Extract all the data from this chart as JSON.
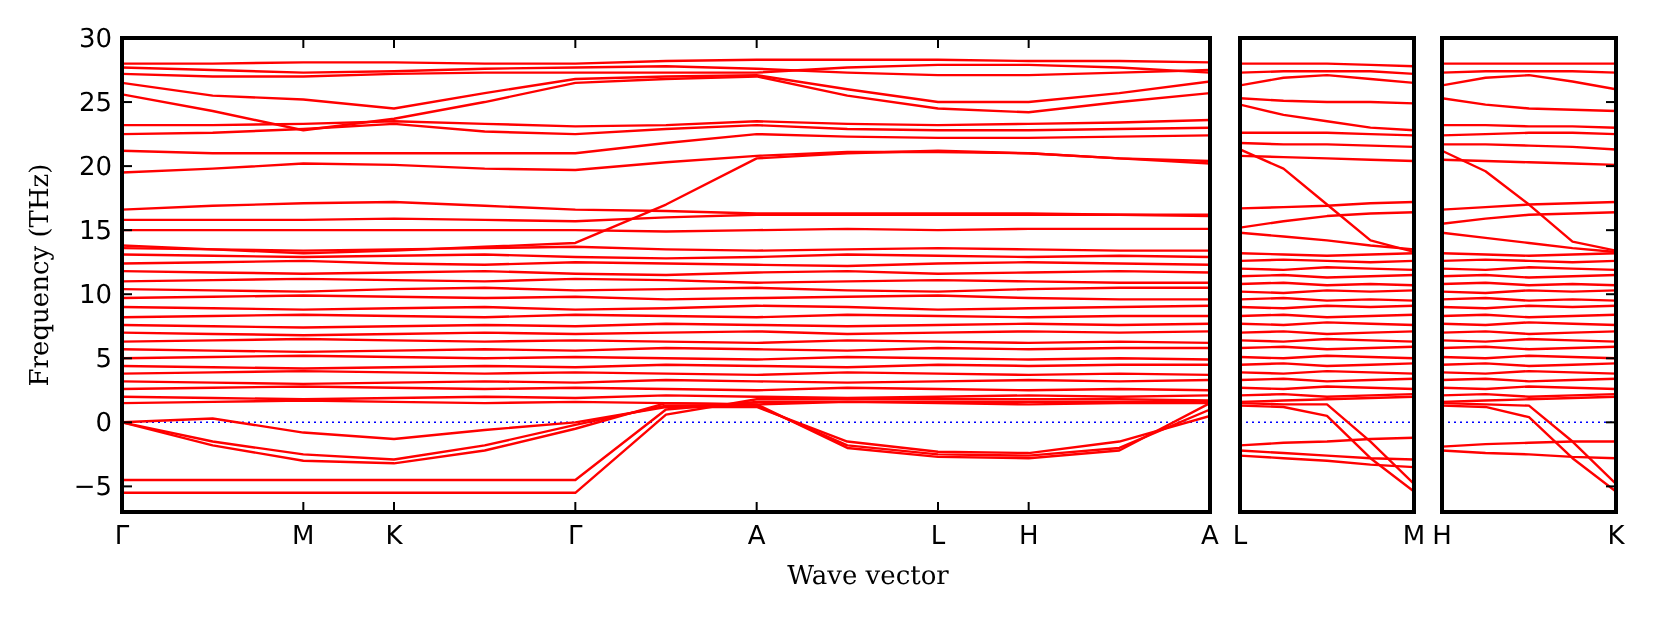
{
  "chart_data": [
    {
      "type": "line",
      "ylabel": "Frequency (THz)",
      "xlabel": "Wave vector",
      "categories": [
        "Γ",
        null,
        "M",
        "K",
        null,
        "Γ",
        null,
        "A",
        null,
        "L",
        "H",
        null,
        "A"
      ],
      "ylim": [
        -7,
        30
      ],
      "yticks": [
        -5,
        0,
        5,
        10,
        15,
        20,
        25,
        30
      ],
      "ref_lines": [
        {
          "axis": "y",
          "value": 0,
          "color": "#0000ff",
          "line_style": "dotted"
        }
      ],
      "series": [
        {
          "color": "#ff0000",
          "values": [
            28.0,
            28.0,
            28.1,
            28.1,
            28.0,
            28.0,
            28.2,
            28.3,
            28.3,
            28.3,
            28.2,
            28.2,
            28.1
          ]
        },
        {
          "color": "#ff0000",
          "values": [
            27.7,
            27.5,
            27.3,
            27.4,
            27.6,
            27.7,
            27.8,
            27.6,
            27.3,
            27.1,
            27.1,
            27.3,
            27.5
          ]
        },
        {
          "color": "#ff0000",
          "values": [
            27.2,
            27.0,
            27.0,
            27.2,
            27.3,
            27.3,
            27.3,
            27.3,
            27.7,
            27.9,
            27.9,
            27.7,
            27.3
          ]
        },
        {
          "color": "#ff0000",
          "values": [
            26.5,
            25.5,
            25.2,
            24.5,
            25.7,
            26.8,
            27.0,
            27.1,
            26.0,
            25.0,
            25.0,
            25.7,
            26.6
          ]
        },
        {
          "color": "#ff0000",
          "values": [
            25.6,
            24.3,
            22.8,
            23.7,
            25.0,
            26.5,
            26.8,
            27.0,
            25.5,
            24.5,
            24.2,
            25.0,
            25.7
          ]
        },
        {
          "color": "#ff0000",
          "values": [
            23.2,
            23.2,
            23.3,
            23.5,
            23.3,
            23.1,
            23.2,
            23.5,
            23.3,
            23.2,
            23.3,
            23.4,
            23.6
          ]
        },
        {
          "color": "#ff0000",
          "values": [
            22.5,
            22.6,
            22.9,
            23.3,
            22.7,
            22.5,
            22.9,
            23.2,
            22.9,
            22.8,
            22.8,
            22.9,
            23.0
          ]
        },
        {
          "color": "#ff0000",
          "values": [
            21.2,
            21.0,
            21.0,
            21.0,
            21.0,
            21.0,
            21.8,
            22.5,
            22.3,
            22.2,
            22.2,
            22.3,
            22.4
          ]
        },
        {
          "color": "#ff0000",
          "values": [
            19.5,
            19.8,
            20.2,
            20.1,
            19.8,
            19.7,
            20.3,
            20.8,
            21.1,
            21.1,
            21.0,
            20.6,
            20.2
          ]
        },
        {
          "color": "#ff0000",
          "values": [
            16.6,
            16.9,
            17.1,
            17.2,
            16.9,
            16.6,
            16.5,
            16.3,
            16.3,
            16.3,
            16.3,
            16.2,
            16.2
          ]
        },
        {
          "color": "#ff0000",
          "values": [
            15.8,
            15.8,
            15.8,
            15.9,
            15.8,
            15.7,
            16.0,
            16.2,
            16.2,
            16.2,
            16.2,
            16.2,
            16.1
          ]
        },
        {
          "color": "#ff0000",
          "values": [
            15.0,
            15.0,
            15.0,
            15.0,
            15.0,
            15.0,
            14.9,
            15.0,
            15.1,
            15.0,
            15.1,
            15.1,
            15.1
          ]
        },
        {
          "color": "#ff0000",
          "values": [
            13.8,
            13.5,
            13.2,
            13.4,
            13.7,
            14.0,
            17.0,
            20.6,
            21.0,
            21.2,
            21.0,
            20.6,
            20.4
          ]
        },
        {
          "color": "#ff0000",
          "values": [
            13.6,
            13.5,
            13.4,
            13.5,
            13.6,
            13.7,
            13.5,
            13.4,
            13.5,
            13.6,
            13.5,
            13.4,
            13.4
          ]
        },
        {
          "color": "#ff0000",
          "values": [
            13.1,
            13.0,
            12.9,
            13.0,
            13.1,
            12.9,
            12.8,
            12.9,
            13.1,
            13.0,
            12.9,
            13.0,
            12.9
          ]
        },
        {
          "color": "#ff0000",
          "values": [
            12.4,
            12.5,
            12.6,
            12.4,
            12.3,
            12.5,
            12.4,
            12.3,
            12.2,
            12.4,
            12.5,
            12.4,
            12.3
          ]
        },
        {
          "color": "#ff0000",
          "values": [
            11.8,
            11.7,
            11.6,
            11.7,
            11.8,
            11.6,
            11.5,
            11.7,
            11.8,
            11.6,
            11.7,
            11.8,
            11.7
          ]
        },
        {
          "color": "#ff0000",
          "values": [
            11.0,
            11.1,
            11.2,
            11.1,
            11.0,
            11.2,
            11.1,
            10.9,
            11.0,
            11.1,
            11.0,
            10.9,
            10.9
          ]
        },
        {
          "color": "#ff0000",
          "values": [
            10.4,
            10.3,
            10.2,
            10.4,
            10.5,
            10.3,
            10.4,
            10.5,
            10.3,
            10.2,
            10.4,
            10.5,
            10.5
          ]
        },
        {
          "color": "#ff0000",
          "values": [
            9.7,
            9.8,
            9.9,
            9.8,
            9.7,
            9.8,
            9.6,
            9.7,
            9.8,
            9.9,
            9.7,
            9.6,
            9.6
          ]
        },
        {
          "color": "#ff0000",
          "values": [
            9.0,
            8.9,
            8.8,
            8.9,
            9.0,
            8.8,
            8.9,
            9.1,
            9.0,
            8.8,
            8.9,
            9.0,
            9.1
          ]
        },
        {
          "color": "#ff0000",
          "values": [
            8.2,
            8.3,
            8.4,
            8.3,
            8.2,
            8.4,
            8.3,
            8.2,
            8.4,
            8.3,
            8.2,
            8.3,
            8.3
          ]
        },
        {
          "color": "#ff0000",
          "values": [
            7.6,
            7.5,
            7.4,
            7.5,
            7.6,
            7.5,
            7.7,
            7.6,
            7.5,
            7.6,
            7.7,
            7.6,
            7.7
          ]
        },
        {
          "color": "#ff0000",
          "values": [
            7.0,
            6.9,
            6.8,
            6.9,
            7.0,
            6.9,
            7.0,
            7.1,
            6.9,
            7.0,
            7.1,
            7.0,
            7.1
          ]
        },
        {
          "color": "#ff0000",
          "values": [
            6.3,
            6.4,
            6.5,
            6.4,
            6.3,
            6.4,
            6.3,
            6.2,
            6.4,
            6.3,
            6.2,
            6.3,
            6.2
          ]
        },
        {
          "color": "#ff0000",
          "values": [
            5.7,
            5.6,
            5.5,
            5.6,
            5.7,
            5.6,
            5.8,
            5.7,
            5.6,
            5.8,
            5.7,
            5.8,
            5.8
          ]
        },
        {
          "color": "#ff0000",
          "values": [
            5.0,
            5.1,
            5.2,
            5.1,
            5.0,
            5.1,
            5.0,
            4.9,
            5.1,
            5.0,
            4.9,
            5.0,
            4.9
          ]
        },
        {
          "color": "#ff0000",
          "values": [
            4.4,
            4.3,
            4.2,
            4.3,
            4.4,
            4.3,
            4.5,
            4.4,
            4.3,
            4.5,
            4.4,
            4.5,
            4.5
          ]
        },
        {
          "color": "#ff0000",
          "values": [
            3.8,
            3.9,
            4.0,
            3.9,
            3.8,
            3.9,
            3.8,
            3.7,
            3.9,
            3.8,
            3.7,
            3.8,
            3.7
          ]
        },
        {
          "color": "#ff0000",
          "values": [
            3.2,
            3.1,
            3.0,
            3.1,
            3.2,
            3.1,
            3.3,
            3.2,
            3.1,
            3.2,
            3.3,
            3.2,
            3.3
          ]
        },
        {
          "color": "#ff0000",
          "values": [
            2.6,
            2.7,
            2.8,
            2.7,
            2.6,
            2.7,
            2.6,
            2.5,
            2.7,
            2.6,
            2.5,
            2.6,
            2.5
          ]
        },
        {
          "color": "#ff0000",
          "values": [
            2.0,
            1.9,
            1.8,
            1.9,
            2.0,
            1.9,
            2.1,
            2.0,
            1.9,
            2.0,
            2.1,
            2.0,
            2.1
          ]
        },
        {
          "color": "#ff0000",
          "values": [
            1.5,
            1.6,
            1.7,
            1.6,
            1.5,
            1.6,
            1.5,
            1.4,
            1.6,
            1.5,
            1.4,
            1.5,
            1.5
          ]
        },
        {
          "color": "#ff0000",
          "values": [
            0,
            0.3,
            -0.8,
            -1.3,
            -0.6,
            0,
            1.2,
            1.2,
            -1.5,
            -2.3,
            -2.4,
            -1.5,
            0.5
          ]
        },
        {
          "color": "#ff0000",
          "values": [
            0,
            -1.5,
            -2.5,
            -2.9,
            -1.8,
            -0.2,
            1.3,
            1.3,
            -1.8,
            -2.5,
            -2.6,
            -2.0,
            1.0
          ]
        },
        {
          "color": "#ff0000",
          "values": [
            0,
            -1.8,
            -3.0,
            -3.2,
            -2.2,
            -0.5,
            1.5,
            1.4,
            -2.0,
            -2.7,
            -2.8,
            -2.2,
            1.5
          ]
        },
        {
          "color": "#ff0000",
          "values": [
            -4.5,
            -4.5,
            -4.5,
            -4.5,
            -4.5,
            -4.5,
            1.0,
            1.6,
            1.6,
            1.6,
            1.6,
            1.6,
            1.6
          ]
        },
        {
          "color": "#ff0000",
          "values": [
            -5.5,
            -5.5,
            -5.5,
            -5.5,
            -5.5,
            -5.5,
            0.6,
            1.8,
            1.8,
            1.8,
            1.8,
            1.8,
            1.7
          ]
        }
      ]
    },
    {
      "type": "line",
      "tick_labels": "x",
      "categories": [
        "L",
        null,
        null,
        null,
        "M"
      ],
      "ylim": [
        -7,
        30
      ],
      "yticks": [
        -5,
        0,
        5,
        10,
        15,
        20,
        25,
        30
      ],
      "ref_lines": [
        {
          "axis": "y",
          "value": 0,
          "color": "#0000ff",
          "line_style": "dotted"
        }
      ],
      "series": [
        {
          "color": "#ff0000",
          "values": [
            28,
            28,
            28,
            27.9,
            27.8
          ]
        },
        {
          "color": "#ff0000",
          "values": [
            27.3,
            27.4,
            27.4,
            27.4,
            27.2
          ]
        },
        {
          "color": "#ff0000",
          "values": [
            26.3,
            26.9,
            27.1,
            26.8,
            26.5
          ]
        },
        {
          "color": "#ff0000",
          "values": [
            25.3,
            25.1,
            25,
            25,
            24.9
          ]
        },
        {
          "color": "#ff0000",
          "values": [
            24.8,
            24,
            23.5,
            23,
            22.8
          ]
        },
        {
          "color": "#ff0000",
          "values": [
            22.6,
            22.6,
            22.6,
            22.5,
            22.4
          ]
        },
        {
          "color": "#ff0000",
          "values": [
            21.8,
            21.7,
            21.7,
            21.6,
            21.5
          ]
        },
        {
          "color": "#ff0000",
          "values": [
            20.8,
            20.7,
            20.6,
            20.5,
            20.4
          ]
        },
        {
          "color": "#ff0000",
          "values": [
            16.7,
            16.8,
            16.9,
            17.1,
            17.2
          ]
        },
        {
          "color": "#ff0000",
          "values": [
            15.2,
            15.7,
            16.1,
            16.3,
            16.4
          ]
        },
        {
          "color": "#ff0000",
          "values": [
            14.8,
            14.5,
            14.2,
            13.8,
            13.5
          ]
        },
        {
          "color": "#ff0000",
          "values": [
            21.3,
            19.8,
            17,
            14.2,
            13.3
          ]
        },
        {
          "color": "#ff0000",
          "values": [
            13.2,
            13.1,
            13.0,
            13.1,
            13.2
          ]
        },
        {
          "color": "#ff0000",
          "values": [
            12.6,
            12.7,
            12.6,
            12.5,
            12.6
          ]
        },
        {
          "color": "#ff0000",
          "values": [
            12.0,
            11.9,
            12.1,
            12.0,
            11.9
          ]
        },
        {
          "color": "#ff0000",
          "values": [
            11.4,
            11.5,
            11.3,
            11.4,
            11.5
          ]
        },
        {
          "color": "#ff0000",
          "values": [
            10.8,
            10.9,
            10.7,
            10.8,
            10.7
          ]
        },
        {
          "color": "#ff0000",
          "values": [
            10.2,
            10.1,
            10.3,
            10.2,
            10.3
          ]
        },
        {
          "color": "#ff0000",
          "values": [
            9.6,
            9.7,
            9.5,
            9.6,
            9.5
          ]
        },
        {
          "color": "#ff0000",
          "values": [
            9.0,
            8.9,
            9.1,
            9.0,
            9.1
          ]
        },
        {
          "color": "#ff0000",
          "values": [
            8.3,
            8.4,
            8.2,
            8.3,
            8.4
          ]
        },
        {
          "color": "#ff0000",
          "values": [
            7.7,
            7.6,
            7.8,
            7.7,
            7.6
          ]
        },
        {
          "color": "#ff0000",
          "values": [
            7.0,
            7.1,
            6.9,
            7.0,
            7.1
          ]
        },
        {
          "color": "#ff0000",
          "values": [
            6.4,
            6.3,
            6.5,
            6.4,
            6.3
          ]
        },
        {
          "color": "#ff0000",
          "values": [
            5.8,
            5.9,
            5.7,
            5.8,
            5.9
          ]
        },
        {
          "color": "#ff0000",
          "values": [
            5.1,
            5.0,
            5.2,
            5.1,
            5.0
          ]
        },
        {
          "color": "#ff0000",
          "values": [
            4.5,
            4.6,
            4.4,
            4.5,
            4.6
          ]
        },
        {
          "color": "#ff0000",
          "values": [
            3.9,
            3.8,
            4.0,
            3.9,
            3.8
          ]
        },
        {
          "color": "#ff0000",
          "values": [
            3.3,
            3.4,
            3.2,
            3.3,
            3.4
          ]
        },
        {
          "color": "#ff0000",
          "values": [
            2.7,
            2.6,
            2.8,
            2.7,
            2.6
          ]
        },
        {
          "color": "#ff0000",
          "values": [
            2.1,
            2.2,
            2.0,
            2.1,
            2.2
          ]
        },
        {
          "color": "#ff0000",
          "values": [
            1.6,
            1.7,
            1.8,
            1.9,
            2.0
          ]
        },
        {
          "color": "#ff0000",
          "values": [
            -1.8,
            -1.6,
            -1.5,
            -1.3,
            -1.2
          ]
        },
        {
          "color": "#ff0000",
          "values": [
            -2.2,
            -2.4,
            -2.6,
            -2.8,
            -2.9
          ]
        },
        {
          "color": "#ff0000",
          "values": [
            -2.6,
            -2.8,
            -3,
            -3.3,
            -3.5
          ]
        },
        {
          "color": "#ff0000",
          "values": [
            1.3,
            1.2,
            0.5,
            -2.8,
            -5.4
          ]
        },
        {
          "color": "#ff0000",
          "values": [
            1.5,
            1.4,
            1.4,
            -1.5,
            -4.8
          ]
        }
      ]
    },
    {
      "type": "line",
      "tick_labels": "x",
      "categories": [
        "H",
        null,
        null,
        null,
        "K"
      ],
      "ylim": [
        -7,
        30
      ],
      "yticks": [
        -5,
        0,
        5,
        10,
        15,
        20,
        25,
        30
      ],
      "ref_lines": [
        {
          "axis": "y",
          "value": 0,
          "color": "#0000ff",
          "line_style": "dotted"
        }
      ],
      "series": [
        {
          "color": "#ff0000",
          "values": [
            28,
            28,
            28,
            28,
            28
          ]
        },
        {
          "color": "#ff0000",
          "values": [
            27.3,
            27.4,
            27.4,
            27.4,
            27.3
          ]
        },
        {
          "color": "#ff0000",
          "values": [
            26.3,
            26.9,
            27.1,
            26.6,
            26
          ]
        },
        {
          "color": "#ff0000",
          "values": [
            25.3,
            24.8,
            24.5,
            24.4,
            24.3
          ]
        },
        {
          "color": "#ff0000",
          "values": [
            23.2,
            23.2,
            23.1,
            23.1,
            23
          ]
        },
        {
          "color": "#ff0000",
          "values": [
            22.4,
            22.5,
            22.6,
            22.6,
            22.5
          ]
        },
        {
          "color": "#ff0000",
          "values": [
            21.7,
            21.7,
            21.6,
            21.5,
            21.3
          ]
        },
        {
          "color": "#ff0000",
          "values": [
            20.5,
            20.4,
            20.3,
            20.2,
            20.1
          ]
        },
        {
          "color": "#ff0000",
          "values": [
            16.6,
            16.8,
            17,
            17.1,
            17.2
          ]
        },
        {
          "color": "#ff0000",
          "values": [
            15.5,
            15.9,
            16.2,
            16.3,
            16.4
          ]
        },
        {
          "color": "#ff0000",
          "values": [
            14.8,
            14.4,
            14,
            13.6,
            13.3
          ]
        },
        {
          "color": "#ff0000",
          "values": [
            21.2,
            19.6,
            17,
            14.1,
            13.4
          ]
        },
        {
          "color": "#ff0000",
          "values": [
            13.2,
            13.1,
            13.0,
            13.1,
            13.2
          ]
        },
        {
          "color": "#ff0000",
          "values": [
            12.6,
            12.7,
            12.6,
            12.5,
            12.6
          ]
        },
        {
          "color": "#ff0000",
          "values": [
            12.0,
            11.9,
            12.1,
            12.0,
            11.9
          ]
        },
        {
          "color": "#ff0000",
          "values": [
            11.4,
            11.5,
            11.3,
            11.4,
            11.5
          ]
        },
        {
          "color": "#ff0000",
          "values": [
            10.8,
            10.9,
            10.7,
            10.8,
            10.7
          ]
        },
        {
          "color": "#ff0000",
          "values": [
            10.2,
            10.1,
            10.3,
            10.2,
            10.3
          ]
        },
        {
          "color": "#ff0000",
          "values": [
            9.6,
            9.7,
            9.5,
            9.6,
            9.5
          ]
        },
        {
          "color": "#ff0000",
          "values": [
            9.0,
            8.9,
            9.1,
            9.0,
            9.1
          ]
        },
        {
          "color": "#ff0000",
          "values": [
            8.3,
            8.4,
            8.2,
            8.3,
            8.4
          ]
        },
        {
          "color": "#ff0000",
          "values": [
            7.7,
            7.6,
            7.8,
            7.7,
            7.6
          ]
        },
        {
          "color": "#ff0000",
          "values": [
            7.0,
            7.1,
            6.9,
            7.0,
            7.1
          ]
        },
        {
          "color": "#ff0000",
          "values": [
            6.4,
            6.3,
            6.5,
            6.4,
            6.3
          ]
        },
        {
          "color": "#ff0000",
          "values": [
            5.8,
            5.9,
            5.7,
            5.8,
            5.9
          ]
        },
        {
          "color": "#ff0000",
          "values": [
            5.1,
            5.0,
            5.2,
            5.1,
            5.0
          ]
        },
        {
          "color": "#ff0000",
          "values": [
            4.5,
            4.6,
            4.4,
            4.5,
            4.6
          ]
        },
        {
          "color": "#ff0000",
          "values": [
            3.9,
            3.8,
            4.0,
            3.9,
            3.8
          ]
        },
        {
          "color": "#ff0000",
          "values": [
            3.3,
            3.4,
            3.2,
            3.3,
            3.4
          ]
        },
        {
          "color": "#ff0000",
          "values": [
            2.7,
            2.6,
            2.8,
            2.7,
            2.6
          ]
        },
        {
          "color": "#ff0000",
          "values": [
            2.1,
            2.2,
            2.0,
            2.1,
            2.2
          ]
        },
        {
          "color": "#ff0000",
          "values": [
            1.6,
            1.7,
            1.8,
            1.9,
            2.0
          ]
        },
        {
          "color": "#ff0000",
          "values": [
            -1.9,
            -1.7,
            -1.6,
            -1.5,
            -1.5
          ]
        },
        {
          "color": "#ff0000",
          "values": [
            -2.2,
            -2.4,
            -2.5,
            -2.7,
            -2.8
          ]
        },
        {
          "color": "#ff0000",
          "values": [
            1.3,
            1.2,
            0.4,
            -2.8,
            -5.4
          ]
        },
        {
          "color": "#ff0000",
          "values": [
            1.5,
            1.4,
            1.3,
            -1.5,
            -4.8
          ]
        }
      ]
    }
  ]
}
